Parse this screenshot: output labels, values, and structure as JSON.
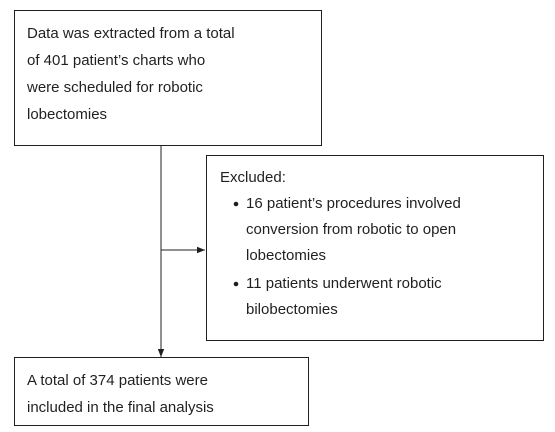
{
  "nodes": [
    {
      "lines": [
        "Data was extracted from a total",
        "of 401 patient’s charts who",
        "were scheduled for robotic",
        "lobectomies"
      ]
    },
    {
      "heading": "Excluded:",
      "items": [
        {
          "lines": [
            "16 patient’s procedures involved",
            "conversion from robotic to open",
            "lobectomies"
          ]
        },
        {
          "lines": [
            "11 patients underwent robotic",
            "bilobectomies"
          ]
        }
      ]
    },
    {
      "lines": [
        "A total of 374 patients were",
        "included in the final analysis"
      ]
    }
  ]
}
